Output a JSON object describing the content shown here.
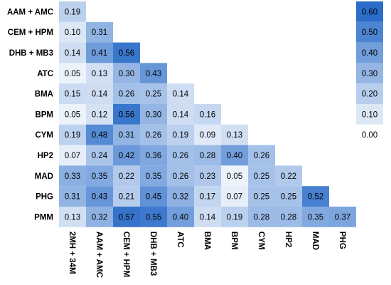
{
  "chart_data": {
    "type": "heatmap",
    "layout": "lower-triangle",
    "rows": [
      "AAM + AMC",
      "CEM + HPM",
      "DHB + MB3",
      "ATC",
      "BMA",
      "BPM",
      "CYM",
      "HP2",
      "MAD",
      "PHG",
      "PMM"
    ],
    "columns": [
      "2MH + 34M",
      "AAM + AMC",
      "CEM + HPM",
      "DHB + MB3",
      "ATC",
      "BMA",
      "BPM",
      "CYM",
      "HP2",
      "MAD",
      "PHG"
    ],
    "values": [
      [
        0.19
      ],
      [
        0.1,
        0.31
      ],
      [
        0.14,
        0.41,
        0.56
      ],
      [
        0.05,
        0.13,
        0.3,
        0.43
      ],
      [
        0.15,
        0.14,
        0.26,
        0.25,
        0.14
      ],
      [
        0.05,
        0.12,
        0.56,
        0.3,
        0.14,
        0.16
      ],
      [
        0.19,
        0.48,
        0.31,
        0.26,
        0.19,
        0.09,
        0.13
      ],
      [
        0.07,
        0.24,
        0.42,
        0.36,
        0.26,
        0.28,
        0.4,
        0.26
      ],
      [
        0.33,
        0.35,
        0.22,
        0.35,
        0.26,
        0.23,
        0.05,
        0.25,
        0.22
      ],
      [
        0.31,
        0.43,
        0.21,
        0.45,
        0.32,
        0.17,
        0.07,
        0.25,
        0.25,
        0.52
      ],
      [
        0.13,
        0.32,
        0.57,
        0.55,
        0.4,
        0.14,
        0.19,
        0.28,
        0.28,
        0.35,
        0.37
      ]
    ],
    "color_scale": {
      "min": 0.0,
      "max": 0.6,
      "low_color": "#ffffff",
      "high_color": "#2b6dc9",
      "ticks": [
        "0.60",
        "0.50",
        "0.40",
        "0.30",
        "0.20",
        "0.10",
        "0.00"
      ]
    },
    "legend_placement": "right",
    "title": "",
    "xlabel": "",
    "ylabel": ""
  }
}
